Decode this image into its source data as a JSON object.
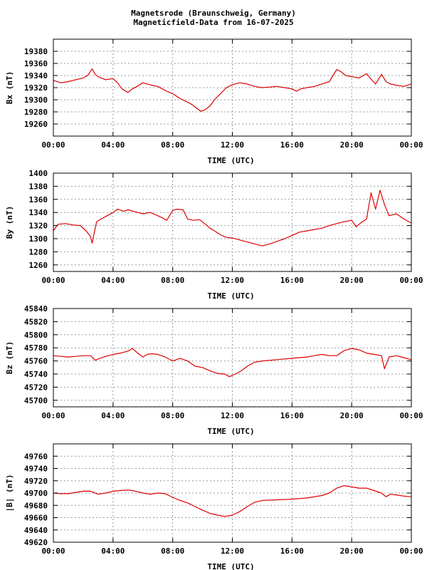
{
  "header": {
    "line1": "Magnetsrode (Braunschweig, Germany)",
    "line2": "Magneticfield-Data from 16-07-2025"
  },
  "colors": {
    "series": "#dd0000",
    "grid": "#999999",
    "axis": "#000000"
  },
  "chart_data": [
    {
      "type": "line",
      "ylabel": "Bx (nT)",
      "xlabel": "TIME (UTC)",
      "xlim": [
        0,
        24
      ],
      "x_ticks": [
        "00:00",
        "04:00",
        "08:00",
        "12:00",
        "16:00",
        "20:00",
        "00:00"
      ],
      "ylim": [
        19240,
        19400
      ],
      "y_ticks": [
        19260,
        19280,
        19300,
        19320,
        19340,
        19360,
        19380
      ],
      "grid": true,
      "series": [
        {
          "x": [
            0,
            0.5,
            1,
            1.5,
            2,
            2.3,
            2.6,
            2.8,
            3,
            3.5,
            4,
            4.3,
            4.6,
            5,
            5.3,
            5.6,
            6,
            6.3,
            6.6,
            7,
            7.3,
            7.6,
            8,
            8.5,
            9,
            9.3,
            9.6,
            9.9,
            10.2,
            10.5,
            10.8,
            11.2,
            11.6,
            12,
            12.5,
            13,
            13.5,
            14,
            14.5,
            15,
            15.5,
            16,
            16.3,
            16.6,
            17,
            17.5,
            18,
            18.5,
            19,
            19.3,
            19.6,
            20,
            20.5,
            21,
            21.3,
            21.6,
            22,
            22.3,
            22.6,
            23,
            23.5,
            24
          ],
          "values": [
            19332,
            19328,
            19330,
            19333,
            19336,
            19340,
            19351,
            19342,
            19338,
            19333,
            19335,
            19328,
            19318,
            19312,
            19318,
            19322,
            19328,
            19326,
            19324,
            19322,
            19318,
            19314,
            19310,
            19302,
            19296,
            19292,
            19286,
            19281,
            19284,
            19290,
            19300,
            19310,
            19320,
            19325,
            19328,
            19326,
            19322,
            19320,
            19321,
            19322,
            19320,
            19318,
            19314,
            19318,
            19320,
            19322,
            19326,
            19330,
            19350,
            19346,
            19340,
            19338,
            19336,
            19343,
            19334,
            19326,
            19342,
            19330,
            19326,
            19324,
            19322,
            19326
          ]
        }
      ]
    },
    {
      "type": "line",
      "ylabel": "By (nT)",
      "xlabel": "TIME (UTC)",
      "xlim": [
        0,
        24
      ],
      "x_ticks": [
        "00:00",
        "04:00",
        "08:00",
        "12:00",
        "16:00",
        "20:00",
        "00:00"
      ],
      "ylim": [
        1250,
        1400
      ],
      "y_ticks": [
        1260,
        1280,
        1300,
        1320,
        1340,
        1360,
        1380,
        1400
      ],
      "grid": true,
      "series": [
        {
          "x": [
            0,
            0.3,
            0.8,
            1.3,
            1.8,
            2.2,
            2.5,
            2.6,
            2.7,
            2.9,
            3.2,
            3.6,
            4,
            4.3,
            4.7,
            5,
            5.5,
            6,
            6.5,
            7,
            7.3,
            7.6,
            8,
            8.3,
            8.7,
            9,
            9.4,
            9.8,
            10.2,
            10.5,
            10.8,
            11.2,
            11.6,
            12,
            12.5,
            13,
            13.5,
            14,
            14.5,
            15,
            15.5,
            16,
            16.5,
            17,
            17.5,
            18,
            18.5,
            19,
            19.5,
            20,
            20.3,
            20.6,
            21,
            21.3,
            21.6,
            21.9,
            22.2,
            22.5,
            23,
            23.5,
            24
          ],
          "values": [
            1312,
            1322,
            1323,
            1321,
            1320,
            1312,
            1303,
            1293,
            1305,
            1326,
            1330,
            1335,
            1340,
            1345,
            1342,
            1344,
            1341,
            1338,
            1340,
            1335,
            1332,
            1328,
            1343,
            1345,
            1344,
            1330,
            1328,
            1329,
            1322,
            1316,
            1312,
            1306,
            1302,
            1301,
            1298,
            1295,
            1292,
            1289,
            1292,
            1296,
            1300,
            1305,
            1310,
            1312,
            1314,
            1316,
            1320,
            1323,
            1326,
            1328,
            1318,
            1324,
            1330,
            1370,
            1345,
            1374,
            1352,
            1335,
            1338,
            1330,
            1324
          ]
        }
      ]
    },
    {
      "type": "line",
      "ylabel": "Bz (nT)",
      "xlabel": "TIME (UTC)",
      "xlim": [
        0,
        24
      ],
      "x_ticks": [
        "00:00",
        "04:00",
        "08:00",
        "12:00",
        "16:00",
        "20:00",
        "00:00"
      ],
      "ylim": [
        45690,
        45840
      ],
      "y_ticks": [
        45700,
        45720,
        45740,
        45760,
        45780,
        45800,
        45820,
        45840
      ],
      "grid": true,
      "series": [
        {
          "x": [
            0,
            0.5,
            1,
            1.5,
            2,
            2.5,
            2.8,
            3,
            3.5,
            4,
            4.5,
            5,
            5.3,
            5.6,
            6,
            6.3,
            6.6,
            7,
            7.5,
            8,
            8.5,
            9,
            9.5,
            10,
            10.5,
            11,
            11.5,
            11.8,
            12,
            12.3,
            12.6,
            13,
            13.5,
            14,
            15,
            16,
            17,
            17.5,
            18,
            18.5,
            19,
            19.5,
            20,
            20.5,
            21,
            21.5,
            22,
            22.2,
            22.5,
            23,
            23.5,
            24
          ],
          "values": [
            45768,
            45767,
            45766,
            45767,
            45768,
            45768,
            45761,
            45763,
            45767,
            45770,
            45772,
            45775,
            45779,
            45773,
            45766,
            45770,
            45771,
            45770,
            45766,
            45760,
            45764,
            45760,
            45752,
            45750,
            45745,
            45741,
            45740,
            45736,
            45738,
            45741,
            45745,
            45752,
            45758,
            45760,
            45762,
            45764,
            45766,
            45768,
            45770,
            45768,
            45768,
            45776,
            45779,
            45777,
            45772,
            45770,
            45768,
            45748,
            45766,
            45768,
            45765,
            45762
          ]
        }
      ]
    },
    {
      "type": "line",
      "ylabel": "|B| (nT)",
      "xlabel": "TIME (UTC)",
      "xlim": [
        0,
        24
      ],
      "x_ticks": [
        "00:00",
        "04:00",
        "08:00",
        "12:00",
        "16:00",
        "20:00",
        "00:00"
      ],
      "ylim": [
        49620,
        49780
      ],
      "y_ticks": [
        49620,
        49640,
        49660,
        49680,
        49700,
        49720,
        49740,
        49760
      ],
      "grid": true,
      "series": [
        {
          "x": [
            0,
            0.5,
            1,
            1.5,
            2,
            2.5,
            3,
            3.5,
            4,
            4.5,
            5,
            5.5,
            6,
            6.5,
            7,
            7.5,
            8,
            8.5,
            9,
            9.5,
            10,
            10.5,
            11,
            11.5,
            12,
            12.5,
            13,
            13.5,
            14,
            15,
            16,
            17,
            18,
            18.5,
            19,
            19.5,
            20,
            20.5,
            21,
            21.5,
            22,
            22.3,
            22.6,
            23,
            23.5,
            24
          ],
          "values": [
            49700,
            49699,
            49699,
            49701,
            49703,
            49703,
            49698,
            49700,
            49703,
            49704,
            49705,
            49703,
            49700,
            49698,
            49700,
            49699,
            49693,
            49688,
            49684,
            49678,
            49672,
            49667,
            49664,
            49662,
            49664,
            49670,
            49678,
            49685,
            49688,
            49689,
            49690,
            49692,
            49696,
            49700,
            49708,
            49712,
            49710,
            49708,
            49708,
            49704,
            49700,
            49694,
            49698,
            49697,
            49695,
            49694
          ]
        }
      ]
    }
  ]
}
